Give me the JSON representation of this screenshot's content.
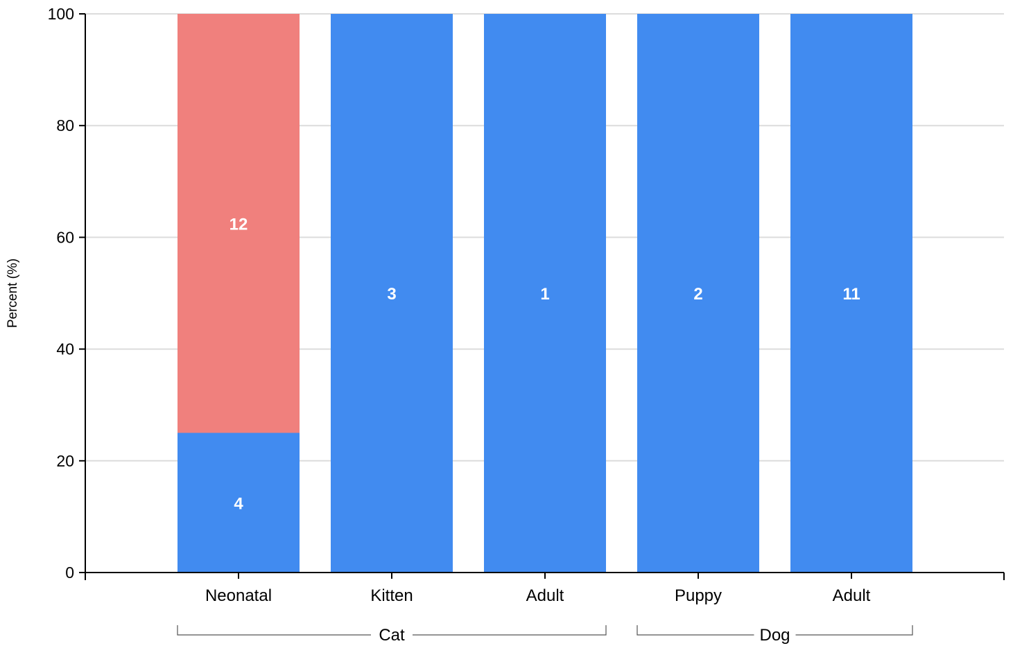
{
  "chart_data": {
    "type": "bar",
    "stacked": true,
    "ylabel": "Percent (%)",
    "ylim": [
      0,
      100
    ],
    "yticks": [
      0,
      20,
      40,
      60,
      80,
      100
    ],
    "grid": true,
    "categories": [
      "Neonatal",
      "Kitten",
      "Adult",
      "Puppy",
      "Adult"
    ],
    "groups": [
      {
        "label": "Cat",
        "categories": [
          0,
          1,
          2
        ]
      },
      {
        "label": "Dog",
        "categories": [
          3,
          4
        ]
      }
    ],
    "series": [
      {
        "color": "#418BF0",
        "values": [
          25,
          100,
          100,
          100,
          100
        ],
        "labels": [
          "4",
          "3",
          "1",
          "2",
          "11"
        ]
      },
      {
        "color": "#F0807D",
        "values": [
          75,
          0,
          0,
          0,
          0
        ],
        "labels": [
          "12",
          "",
          "",
          "",
          ""
        ]
      }
    ]
  }
}
